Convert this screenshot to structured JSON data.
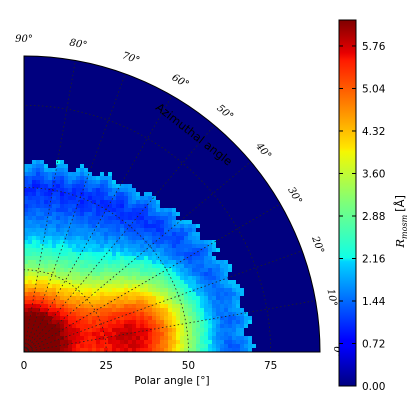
{
  "chart_data": {
    "type": "heatmap",
    "projection": "polar-quadrant",
    "r_axis": {
      "label": "Polar angle [°]",
      "range": [
        0,
        90
      ],
      "ticks": [
        "0",
        "25",
        "50",
        "75"
      ],
      "tick_values": [
        0,
        25,
        50,
        75
      ]
    },
    "theta_axis": {
      "label": "Azimuthal angle",
      "range": [
        0,
        90
      ],
      "ticks": [
        "0°",
        "10°",
        "20°",
        "30°",
        "40°",
        "50°",
        "60°",
        "70°",
        "80°",
        "90°"
      ],
      "tick_values": [
        0,
        10,
        20,
        30,
        40,
        50,
        60,
        70,
        80,
        90
      ]
    },
    "colorbar": {
      "label_symbol": "R",
      "label_subscript": "mosm",
      "label_unit": "[Å]",
      "range": [
        0,
        6.2
      ],
      "ticks": [
        "0.00",
        "0.72",
        "1.44",
        "2.16",
        "2.88",
        "3.60",
        "4.32",
        "5.04",
        "5.76"
      ],
      "tick_values": [
        0,
        0.72,
        1.44,
        2.16,
        2.88,
        3.6,
        4.32,
        5.04,
        5.76
      ],
      "colormap": "jet"
    },
    "field": {
      "background_value": 0.0,
      "hot_spots": [
        {
          "polar_deg": 5,
          "azimuth_deg": 85,
          "peak_value": 6.1
        },
        {
          "polar_deg": 36,
          "azimuth_deg": 8,
          "peak_value": 6.1
        }
      ],
      "cutoff_polar_deg_min": 58,
      "cutoff_polar_deg_max": 69
    },
    "grid": true,
    "grid_style": "dotted"
  }
}
